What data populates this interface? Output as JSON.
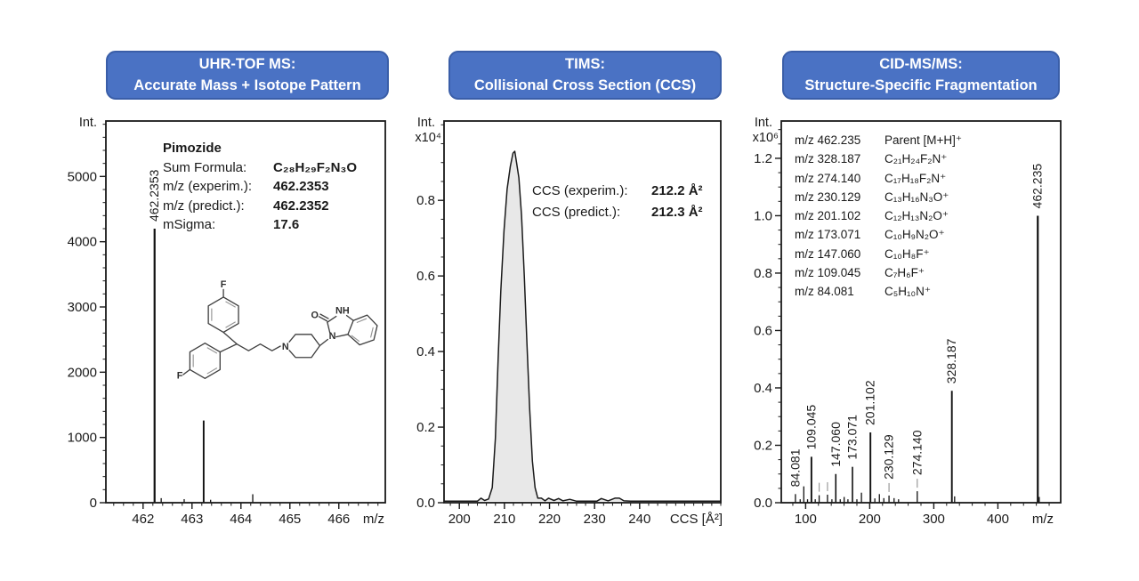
{
  "panels": [
    {
      "header_line1": "UHR-TOF MS:",
      "header_line2": "Accurate Mass + Isotope Pattern"
    },
    {
      "header_line1": "TIMS:",
      "header_line2": "Collisional Cross Section (CCS)"
    },
    {
      "header_line1": "CID-MS/MS:",
      "header_line2": "Structure-Specific Fragmentation"
    }
  ],
  "colors": {
    "header_bg": "#4a72c4",
    "header_border": "#3a5ea8",
    "header_text": "#ffffff",
    "axis": "#1a1a1a",
    "peak": "#111111",
    "area_fill": "#e8e8e8",
    "leader": "#9a9a9a"
  },
  "compound_info": {
    "title": "Pimozide",
    "rows": [
      [
        "Sum Formula:",
        "C₂₈H₂₉F₂N₃O"
      ],
      [
        "m/z (experim.):",
        "462.2353"
      ],
      [
        "m/z (predict.):",
        "462.2352"
      ],
      [
        "mSigma:",
        "17.6"
      ]
    ]
  },
  "ccs_info": {
    "rows": [
      [
        "CCS (experim.):",
        "212.2 Å²"
      ],
      [
        "CCS (predict.):",
        "212.3 Å²"
      ]
    ]
  },
  "fragment_table": [
    [
      "m/z 462.235",
      "Parent [M+H]⁺"
    ],
    [
      "m/z 328.187",
      "C₂₁H₂₄F₂N⁺"
    ],
    [
      "m/z 274.140",
      "C₁₇H₁₈F₂N⁺"
    ],
    [
      "m/z 230.129",
      "C₁₃H₁₆N₃O⁺"
    ],
    [
      "m/z 201.102",
      "C₁₂H₁₃N₂O⁺"
    ],
    [
      "m/z 173.071",
      "C₁₀H₉N₂O⁺"
    ],
    [
      "m/z 147.060",
      "C₁₀H₈F⁺"
    ],
    [
      "m/z 109.045",
      "C₇H₆F⁺"
    ],
    [
      "m/z 84.081",
      "C₅H₁₀N⁺"
    ]
  ],
  "structure": {
    "atoms": {
      "f_top": "F",
      "f_bottom": "F",
      "n_piperidine": "N",
      "o_carbonyl": "O",
      "nh": "NH",
      "n_benzimidazolone": "N"
    }
  },
  "chart_data": [
    {
      "type": "bar",
      "subtype": "stick-spectrum",
      "title": "UHR-TOF MS: Accurate Mass + Isotope Pattern",
      "xlabel": "m/z",
      "ylabel": "Int.",
      "ylabel2": null,
      "x_range": [
        461.24,
        466.95
      ],
      "x_ticks": [
        462,
        463,
        464,
        465,
        466
      ],
      "x_minor_step": 0.2,
      "y_range": [
        0,
        5850
      ],
      "y_ticks": [
        0,
        1000,
        2000,
        3000,
        4000,
        5000
      ],
      "y_minor_step": 200,
      "y_tick_decimals": 0,
      "peaks": [
        {
          "mz": 462.235,
          "intensity": 4200,
          "label": "462.2353"
        },
        {
          "mz": 462.37,
          "intensity": 70
        },
        {
          "mz": 462.84,
          "intensity": 55
        },
        {
          "mz": 463.238,
          "intensity": 1260
        },
        {
          "mz": 463.38,
          "intensity": 45
        },
        {
          "mz": 464.241,
          "intensity": 130
        }
      ]
    },
    {
      "type": "area",
      "title": "TIMS: Collisional Cross Section (CCS)",
      "xlabel": "CCS [Å²]",
      "ylabel": "Int.",
      "ylabel2": "x10⁴",
      "x_range": [
        196.6,
        258
      ],
      "x_ticks": [
        200,
        210,
        220,
        230,
        240
      ],
      "x_minor_step": 2,
      "y_range": [
        0,
        1.01
      ],
      "y_ticks": [
        0,
        0.2,
        0.4,
        0.6,
        0.8
      ],
      "y_minor_step": 0.05,
      "y_tick_decimals": 1,
      "ccs_peak_apex": 212.2,
      "curve": [
        [
          196.6,
          0.004
        ],
        [
          204,
          0.004
        ],
        [
          204.8,
          0.012
        ],
        [
          205.6,
          0.006
        ],
        [
          206.5,
          0.01
        ],
        [
          207.3,
          0.04
        ],
        [
          208,
          0.17
        ],
        [
          208.6,
          0.38
        ],
        [
          209.2,
          0.56
        ],
        [
          209.9,
          0.72
        ],
        [
          210.6,
          0.83
        ],
        [
          211.3,
          0.89
        ],
        [
          211.9,
          0.925
        ],
        [
          212.3,
          0.93
        ],
        [
          212.7,
          0.9
        ],
        [
          213.2,
          0.86
        ],
        [
          213.8,
          0.76
        ],
        [
          214.4,
          0.6
        ],
        [
          215,
          0.42
        ],
        [
          215.6,
          0.25
        ],
        [
          216.2,
          0.11
        ],
        [
          216.8,
          0.04
        ],
        [
          217.4,
          0.012
        ],
        [
          218.2,
          0.012
        ],
        [
          219,
          0.005
        ],
        [
          219.8,
          0.012
        ],
        [
          221,
          0.006
        ],
        [
          222,
          0.011
        ],
        [
          223,
          0.005
        ],
        [
          224.5,
          0.009
        ],
        [
          226,
          0.004
        ],
        [
          228,
          0.004
        ],
        [
          230.5,
          0.004
        ],
        [
          231.5,
          0.011
        ],
        [
          233,
          0.005
        ],
        [
          234.5,
          0.012
        ],
        [
          235.5,
          0.012
        ],
        [
          236.5,
          0.005
        ],
        [
          238,
          0.004
        ],
        [
          257.9,
          0.004
        ]
      ]
    },
    {
      "type": "bar",
      "subtype": "stick-spectrum",
      "title": "CID-MS/MS: Structure-Specific Fragmentation",
      "xlabel": "m/z",
      "ylabel": "Int.",
      "ylabel2": "x10⁶",
      "x_range": [
        62,
        498
      ],
      "x_ticks": [
        100,
        200,
        300,
        400
      ],
      "x_minor_step": 20,
      "y_range": [
        0,
        1.33
      ],
      "y_ticks": [
        0,
        0.2,
        0.4,
        0.6,
        0.8,
        1.0,
        1.2
      ],
      "y_minor_step": 0.05,
      "y_tick_decimals": 1,
      "peaks": [
        {
          "mz": 84.081,
          "intensity": 0.03,
          "label": "84.081"
        },
        {
          "mz": 91.5,
          "intensity": 0.012
        },
        {
          "mz": 97.1,
          "intensity": 0.057
        },
        {
          "mz": 103,
          "intensity": 0.012
        },
        {
          "mz": 109.045,
          "intensity": 0.16,
          "label": "109.045"
        },
        {
          "mz": 115,
          "intensity": 0.012
        },
        {
          "mz": 121.1,
          "intensity": 0.026,
          "leader": true
        },
        {
          "mz": 134.1,
          "intensity": 0.028,
          "leader": true
        },
        {
          "mz": 141,
          "intensity": 0.012
        },
        {
          "mz": 147.06,
          "intensity": 0.1,
          "label": "147.060"
        },
        {
          "mz": 154,
          "intensity": 0.012
        },
        {
          "mz": 160.1,
          "intensity": 0.02
        },
        {
          "mz": 166,
          "intensity": 0.012
        },
        {
          "mz": 173.071,
          "intensity": 0.125,
          "label": "173.071"
        },
        {
          "mz": 180,
          "intensity": 0.012
        },
        {
          "mz": 187.1,
          "intensity": 0.035
        },
        {
          "mz": 201.102,
          "intensity": 0.245,
          "label": "201.102"
        },
        {
          "mz": 208,
          "intensity": 0.015
        },
        {
          "mz": 215.1,
          "intensity": 0.03
        },
        {
          "mz": 222,
          "intensity": 0.016
        },
        {
          "mz": 230.129,
          "intensity": 0.025,
          "label": "230.129",
          "leader": true
        },
        {
          "mz": 238,
          "intensity": 0.016
        },
        {
          "mz": 245,
          "intensity": 0.012
        },
        {
          "mz": 274.14,
          "intensity": 0.04,
          "label": "274.140",
          "leader": true
        },
        {
          "mz": 328.187,
          "intensity": 0.39,
          "label": "328.187"
        },
        {
          "mz": 332.5,
          "intensity": 0.022
        },
        {
          "mz": 462.235,
          "intensity": 1.0,
          "label": "462.235"
        },
        {
          "mz": 464.5,
          "intensity": 0.02
        }
      ]
    }
  ]
}
